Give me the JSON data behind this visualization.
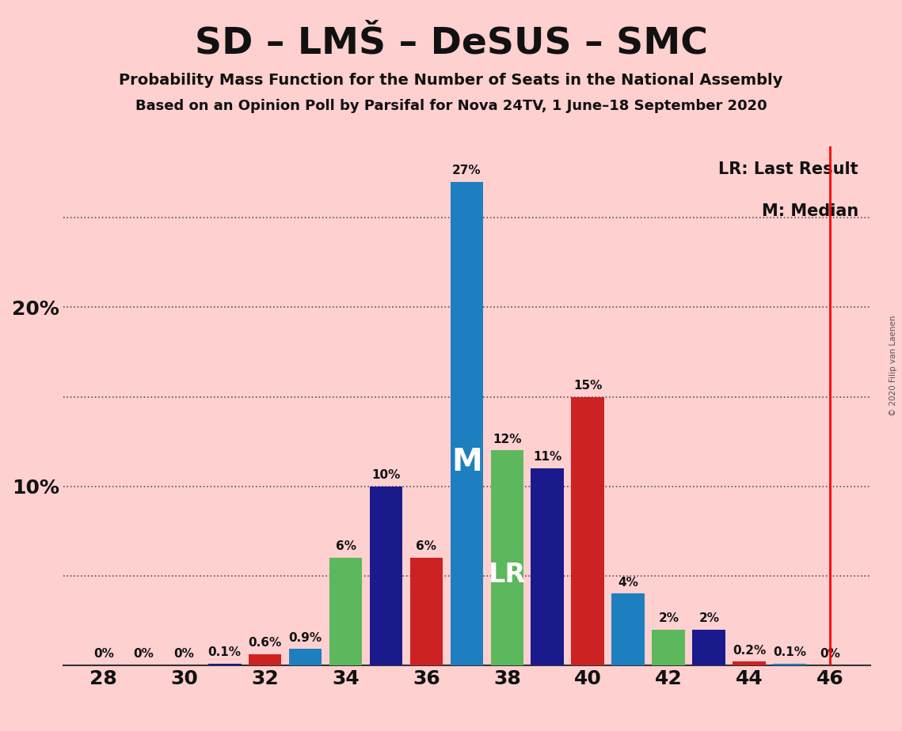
{
  "title": "SD – LMŠ – DeSUS – SMC",
  "subtitle1": "Probability Mass Function for the Number of Seats in the National Assembly",
  "subtitle2": "Based on an Opinion Poll by Parsifal for Nova 24TV, 1 June–18 September 2020",
  "copyright": "© 2020 Filip van Laenen",
  "background_color": "#ffd0d0",
  "seats": [
    28,
    29,
    30,
    31,
    32,
    33,
    34,
    35,
    36,
    37,
    38,
    39,
    40,
    41,
    42,
    43,
    44,
    45,
    46
  ],
  "values": [
    0.0,
    0.0,
    0.0,
    0.1,
    0.6,
    0.9,
    6.0,
    10.0,
    6.0,
    27.0,
    12.0,
    11.0,
    15.0,
    4.0,
    2.0,
    2.0,
    0.2,
    0.1,
    0.0
  ],
  "labels": [
    "0%",
    "0%",
    "0%",
    "0.1%",
    "0.6%",
    "0.9%",
    "6%",
    "10%",
    "6%",
    "27%",
    "12%",
    "11%",
    "15%",
    "4%",
    "2%",
    "2%",
    "0.2%",
    "0.1%",
    "0%"
  ],
  "colors": [
    "#ffd0d0",
    "#ffd0d0",
    "#ffd0d0",
    "#1a1a8c",
    "#cc2222",
    "#1e7fc0",
    "#5cb85c",
    "#1a1a8c",
    "#cc2222",
    "#1e7fc0",
    "#5cb85c",
    "#1a1a8c",
    "#cc2222",
    "#1e7fc0",
    "#5cb85c",
    "#1a1a8c",
    "#cc2222",
    "#1e7fc0",
    "#ffd0d0"
  ],
  "show_bar": [
    false,
    false,
    false,
    true,
    true,
    true,
    true,
    true,
    true,
    true,
    true,
    true,
    true,
    true,
    true,
    true,
    true,
    true,
    false
  ],
  "median_idx": 9,
  "lr_idx": 10,
  "lr_line_seat": 46,
  "ylim_max": 29,
  "gridlines": [
    5,
    10,
    15,
    20,
    25
  ],
  "xlim": [
    27.0,
    47.0
  ],
  "xticks": [
    28,
    30,
    32,
    34,
    36,
    38,
    40,
    42,
    44,
    46
  ],
  "ytick_positions": [
    10,
    20
  ],
  "ytick_labels_ax": [
    "10%",
    "20%"
  ],
  "bar_width": 0.82
}
